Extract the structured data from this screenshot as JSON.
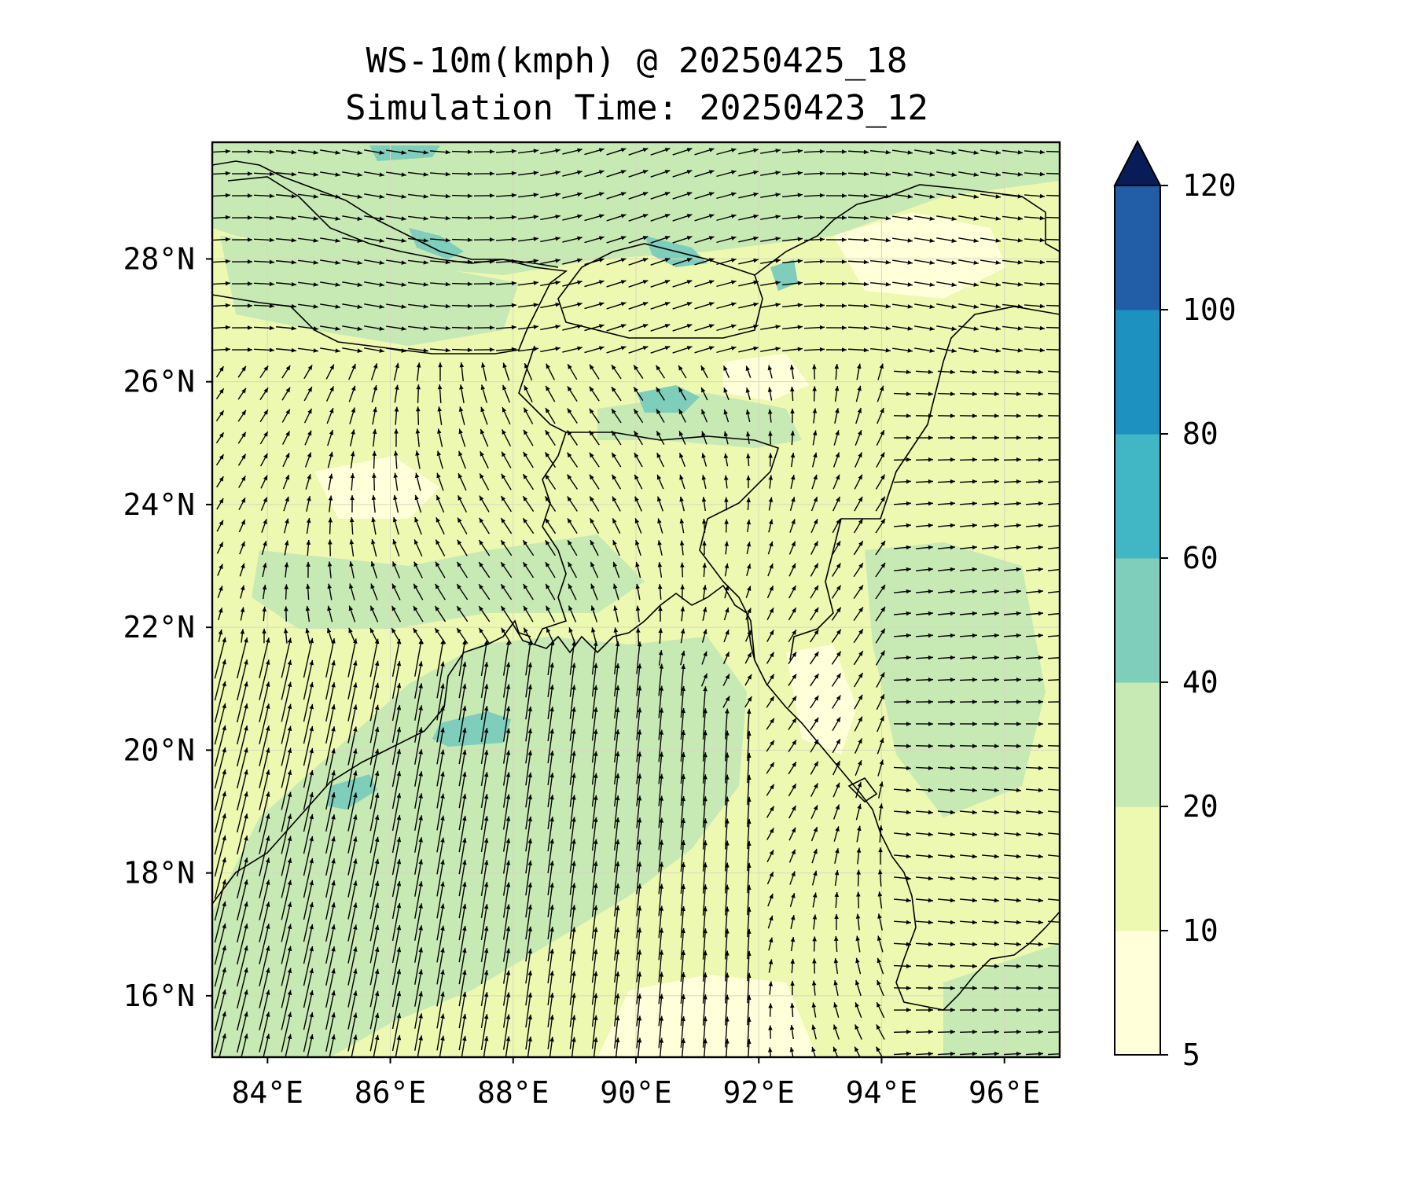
{
  "title_line1": "WS-10m(kmph) @ 20250425_18",
  "title_line2": "Simulation Time: 20250423_12",
  "map": {
    "lon_range": [
      83.1,
      96.9
    ],
    "lat_range": [
      15.0,
      29.9
    ],
    "lon_ticks": [
      84,
      86,
      88,
      90,
      92,
      94,
      96
    ],
    "lat_ticks": [
      16,
      18,
      20,
      22,
      24,
      26,
      28
    ],
    "lon_tick_labels": [
      "84°E",
      "86°E",
      "88°E",
      "90°E",
      "92°E",
      "94°E",
      "96°E"
    ],
    "lat_tick_labels": [
      "16°N",
      "18°N",
      "20°N",
      "22°N",
      "24°N",
      "26°N",
      "28°N"
    ]
  },
  "colorbar": {
    "levels": [
      5,
      10,
      20,
      40,
      60,
      80,
      100,
      120
    ],
    "tick_labels": [
      "5",
      "10",
      "20",
      "40",
      "60",
      "80",
      "100",
      "120"
    ],
    "colors": [
      "#ffffd9",
      "#edf8b1",
      "#c7e9b4",
      "#7fcdbb",
      "#41b6c4",
      "#1d91c0",
      "#225ea8",
      "#0c2c84"
    ],
    "extend_color": "#081d58",
    "extend": "max"
  },
  "background_color": "#edf8b1",
  "coast_color": "#000000",
  "arrow_color": "#000000"
}
